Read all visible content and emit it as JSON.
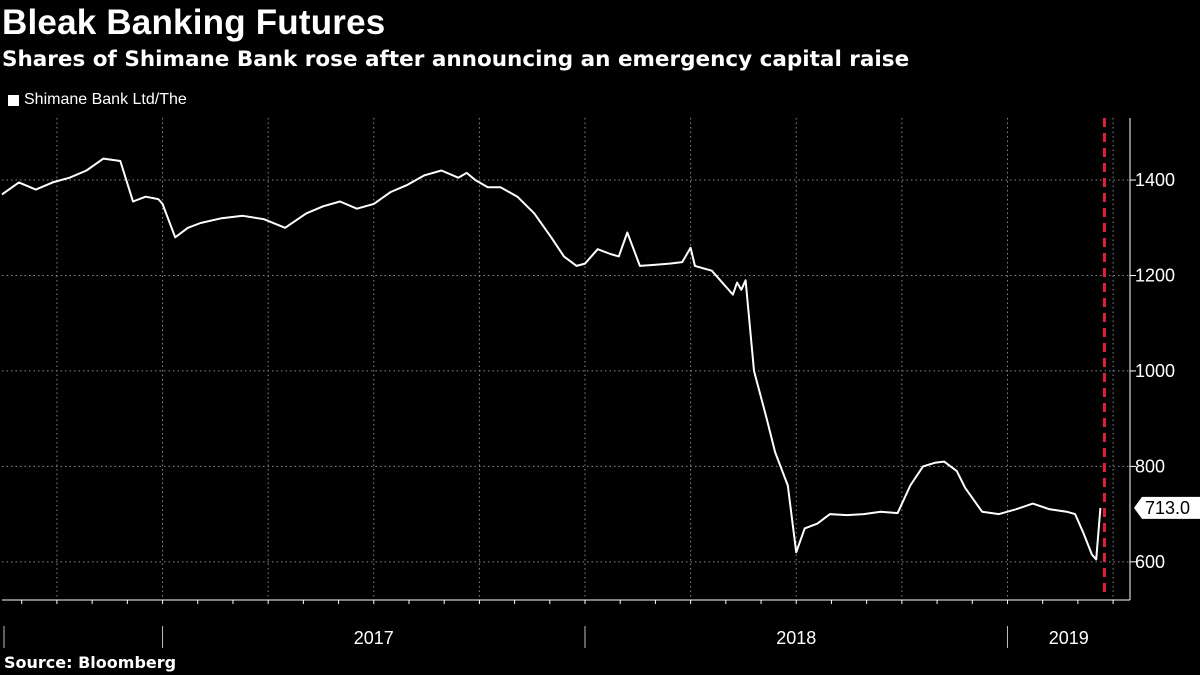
{
  "title": "Bleak Banking Futures",
  "subtitle": "Shares of Shimane Bank rose after announcing an emergency capital raise",
  "source": "Source: Bloomberg",
  "colors": {
    "background": "#000000",
    "line": "#ffffff",
    "grid": "#8a8a8a",
    "event_marker": "#e0203a",
    "last_value_box": "#ffffff"
  },
  "chart_data": {
    "type": "line",
    "title": "Bleak Banking Futures",
    "subtitle": "Shares of Shimane Bank rose after announcing an emergency capital raise",
    "series": [
      {
        "name": "Shimane Bank Ltd/The",
        "x": [
          2016.62,
          2016.66,
          2016.7,
          2016.74,
          2016.78,
          2016.82,
          2016.86,
          2016.9,
          2016.93,
          2016.96,
          2016.99,
          2017.0,
          2017.03,
          2017.06,
          2017.09,
          2017.14,
          2017.19,
          2017.24,
          2017.29,
          2017.34,
          2017.38,
          2017.42,
          2017.46,
          2017.5,
          2017.54,
          2017.58,
          2017.62,
          2017.66,
          2017.7,
          2017.72,
          2017.74,
          2017.77,
          2017.8,
          2017.84,
          2017.88,
          2017.92,
          2017.95,
          2017.98,
          2018.0,
          2018.03,
          2018.06,
          2018.08,
          2018.1,
          2018.13,
          2018.16,
          2018.2,
          2018.23,
          2018.25,
          2018.26,
          2018.3,
          2018.33,
          2018.35,
          2018.36,
          2018.37,
          2018.38,
          2018.4,
          2018.43,
          2018.45,
          2018.48,
          2018.5,
          2018.52,
          2018.55,
          2018.58,
          2018.62,
          2018.66,
          2018.7,
          2018.74,
          2018.77,
          2018.8,
          2018.83,
          2018.85,
          2018.88,
          2018.9,
          2018.94,
          2018.98,
          2019.02,
          2019.06,
          2019.1,
          2019.14,
          2019.16,
          2019.18,
          2019.2,
          2019.21,
          2019.22
        ],
        "values": [
          1370,
          1395,
          1380,
          1395,
          1405,
          1420,
          1445,
          1440,
          1355,
          1365,
          1360,
          1350,
          1280,
          1300,
          1310,
          1320,
          1325,
          1318,
          1300,
          1330,
          1345,
          1355,
          1340,
          1350,
          1375,
          1390,
          1410,
          1420,
          1405,
          1415,
          1400,
          1385,
          1385,
          1365,
          1330,
          1280,
          1240,
          1220,
          1225,
          1255,
          1245,
          1240,
          1290,
          1220,
          1222,
          1225,
          1228,
          1258,
          1220,
          1210,
          1180,
          1160,
          1185,
          1170,
          1190,
          1000,
          900,
          830,
          760,
          620,
          670,
          680,
          700,
          698,
          700,
          705,
          702,
          760,
          800,
          808,
          810,
          790,
          755,
          705,
          700,
          710,
          722,
          710,
          705,
          700,
          660,
          615,
          605,
          713
        ]
      }
    ],
    "event_marker_x": 2019.22,
    "last_value": 713.0,
    "last_value_label": "713.0",
    "xlim": [
      2016.62,
      2019.29
    ],
    "ylim": [
      520,
      1530
    ],
    "yticks": [
      600,
      800,
      1000,
      1200,
      1400
    ],
    "ytick_labels": [
      "600",
      "800",
      "1000",
      "1200",
      "1400"
    ],
    "xticks": [
      "2017",
      "2018",
      "2019"
    ],
    "xtick_positions": [
      2017.5,
      2018.5,
      2019.5
    ],
    "year_boundaries": [
      2017.0,
      2018.0,
      2019.0
    ],
    "monthly_gridlines": [
      2016.75,
      2017.0,
      2017.25,
      2017.5,
      2017.75,
      2018.0,
      2018.25,
      2018.5,
      2018.75,
      2019.0,
      2019.25
    ],
    "xlabel": "",
    "ylabel": "",
    "grid": true,
    "legend": {
      "position": "top-left",
      "entries": [
        "Shimane Bank Ltd/The"
      ]
    }
  }
}
